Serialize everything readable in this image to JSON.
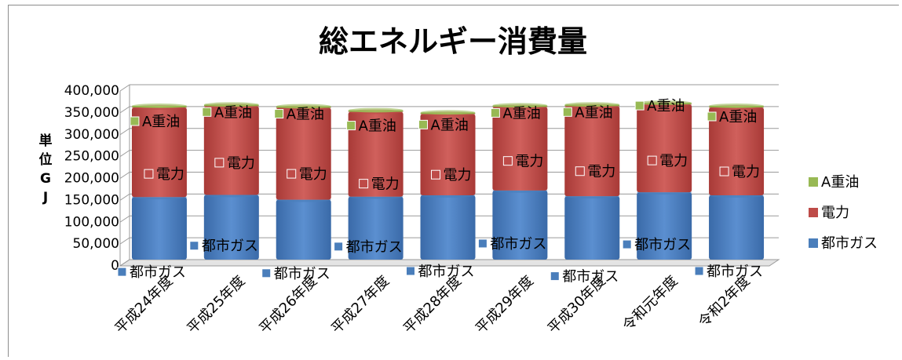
{
  "chart_data": {
    "type": "bar",
    "stacked": true,
    "title": "総エネルギー消費量",
    "ylabel": "単位GJ",
    "ylabel_chars": [
      "単",
      "位",
      "G",
      "J"
    ],
    "ylim": [
      0,
      400000
    ],
    "yticks": [
      0,
      50000,
      100000,
      150000,
      200000,
      250000,
      300000,
      350000,
      400000
    ],
    "ytick_labels": [
      "0",
      "50,000",
      "100,000",
      "150,000",
      "200,000",
      "250,000",
      "300,000",
      "350,000",
      "400,000"
    ],
    "grid": true,
    "legend_position": "right",
    "categories": [
      "平成24年度",
      "平成25年度",
      "平成26年度",
      "平成27年度",
      "平成28年度",
      "平成29年度",
      "平成30年度",
      "令和元年度",
      "令和2年度"
    ],
    "series": [
      {
        "name": "都市ガス",
        "color": "#4a7ebb",
        "values": [
          143000,
          148000,
          137000,
          144000,
          147000,
          158000,
          145000,
          154000,
          147000
        ]
      },
      {
        "name": "電力",
        "color": "#be4b48",
        "values": [
          205000,
          203000,
          210000,
          194000,
          186000,
          191000,
          206000,
          201000,
          201000
        ]
      },
      {
        "name": "A重油",
        "color": "#98b954",
        "values": [
          2000,
          2000,
          2000,
          2000,
          2000,
          2000,
          2000,
          2000,
          2000
        ]
      }
    ]
  }
}
